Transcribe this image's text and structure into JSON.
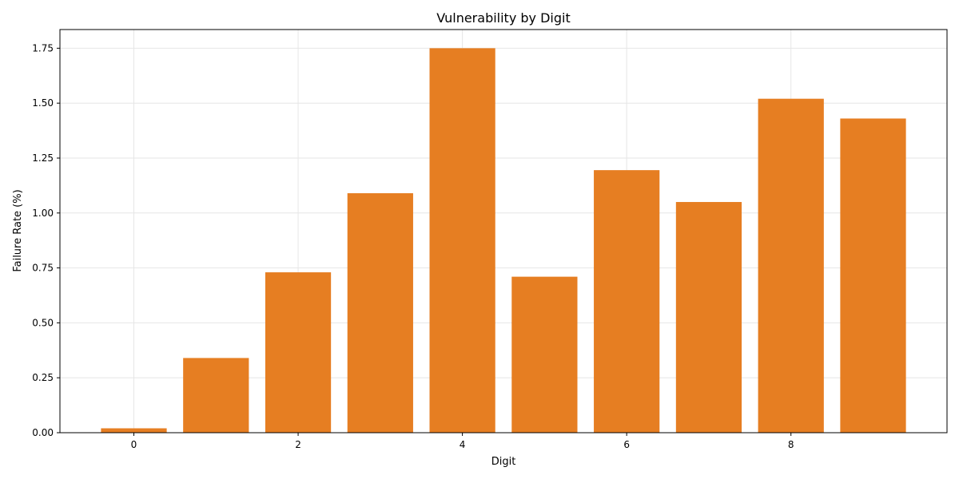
{
  "chart_data": {
    "type": "bar",
    "title": "Vulnerability by Digit",
    "xlabel": "Digit",
    "ylabel": "Failure Rate (%)",
    "x": [
      0,
      1,
      2,
      3,
      4,
      5,
      6,
      7,
      8,
      9
    ],
    "values": [
      0.02,
      0.34,
      0.73,
      1.09,
      1.75,
      0.71,
      1.195,
      1.05,
      1.52,
      1.43
    ],
    "xlim": [
      -0.9,
      9.9
    ],
    "ylim": [
      0,
      1.835
    ],
    "x_ticks": [
      0,
      2,
      4,
      6,
      8
    ],
    "x_tick_labels": [
      "0",
      "2",
      "4",
      "6",
      "8"
    ],
    "y_ticks": [
      0,
      0.25,
      0.5,
      0.75,
      1.0,
      1.25,
      1.5,
      1.75
    ],
    "y_tick_labels": [
      "0.00",
      "0.25",
      "0.50",
      "0.75",
      "1.00",
      "1.25",
      "1.50",
      "1.75"
    ],
    "grid": true,
    "bar_color": "#e67e22",
    "grid_color": "#e6e6e6"
  }
}
